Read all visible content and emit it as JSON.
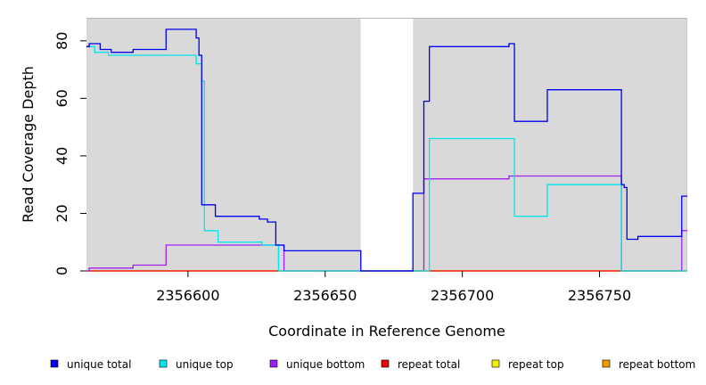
{
  "chart_data": {
    "type": "line",
    "title": "",
    "xlabel": "Coordinate in Reference Genome",
    "ylabel": "Read Coverage Depth",
    "xlim": [
      2356563,
      2356782
    ],
    "ylim": [
      0,
      88
    ],
    "x_ticks": [
      2356600,
      2356650,
      2356700,
      2356750
    ],
    "y_ticks": [
      0,
      20,
      40,
      60,
      80
    ],
    "x_tick_labels": [
      "2356600",
      "2356650",
      "2356700",
      "2356750"
    ],
    "y_tick_labels": [
      "0",
      "20",
      "40",
      "60",
      "80"
    ],
    "shaded_regions": [
      [
        2356563,
        2356663
      ],
      [
        2356682,
        2356782
      ]
    ],
    "legend_position": "bottom",
    "series": [
      {
        "name": "unique total",
        "color": "#0000ee",
        "points": [
          [
            2356563,
            78
          ],
          [
            2356564,
            79
          ],
          [
            2356568,
            77
          ],
          [
            2356572,
            76
          ],
          [
            2356580,
            77
          ],
          [
            2356592,
            84
          ],
          [
            2356603,
            81
          ],
          [
            2356604,
            75
          ],
          [
            2356605,
            23
          ],
          [
            2356610,
            19
          ],
          [
            2356626,
            18
          ],
          [
            2356629,
            17
          ],
          [
            2356632,
            9
          ],
          [
            2356635,
            7
          ],
          [
            2356663,
            0
          ],
          [
            2356682,
            27
          ],
          [
            2356686,
            59
          ],
          [
            2356688,
            78
          ],
          [
            2356717,
            79
          ],
          [
            2356719,
            52
          ],
          [
            2356731,
            63
          ],
          [
            2356758,
            30
          ],
          [
            2356759,
            29
          ],
          [
            2356760,
            11
          ],
          [
            2356764,
            12
          ],
          [
            2356780,
            26
          ],
          [
            2356782,
            26
          ]
        ]
      },
      {
        "name": "unique top",
        "color": "#00e5ee",
        "points": [
          [
            2356563,
            78
          ],
          [
            2356566,
            76
          ],
          [
            2356571,
            75
          ],
          [
            2356594,
            75
          ],
          [
            2356603,
            72
          ],
          [
            2356605,
            66
          ],
          [
            2356606,
            14
          ],
          [
            2356611,
            10
          ],
          [
            2356627,
            9
          ],
          [
            2356633,
            0
          ],
          [
            2356688,
            46
          ],
          [
            2356719,
            19
          ],
          [
            2356731,
            30
          ],
          [
            2356758,
            0
          ],
          [
            2356782,
            0
          ]
        ]
      },
      {
        "name": "unique bottom",
        "color": "#a020f0",
        "points": [
          [
            2356563,
            0
          ],
          [
            2356564,
            1
          ],
          [
            2356580,
            2
          ],
          [
            2356592,
            9
          ],
          [
            2356633,
            9
          ],
          [
            2356635,
            0
          ],
          [
            2356686,
            32
          ],
          [
            2356717,
            33
          ],
          [
            2356758,
            0
          ],
          [
            2356780,
            14
          ],
          [
            2356782,
            14
          ]
        ]
      },
      {
        "name": "repeat total",
        "color": "#ee0000",
        "points": [
          [
            2356563,
            0
          ],
          [
            2356782,
            0
          ]
        ]
      },
      {
        "name": "repeat top",
        "color": "#eeee00",
        "points": [
          [
            2356563,
            0
          ],
          [
            2356782,
            0
          ]
        ]
      },
      {
        "name": "repeat bottom",
        "color": "#ee9a00",
        "points": [
          [
            2356563,
            0
          ],
          [
            2356782,
            0
          ]
        ]
      }
    ]
  }
}
